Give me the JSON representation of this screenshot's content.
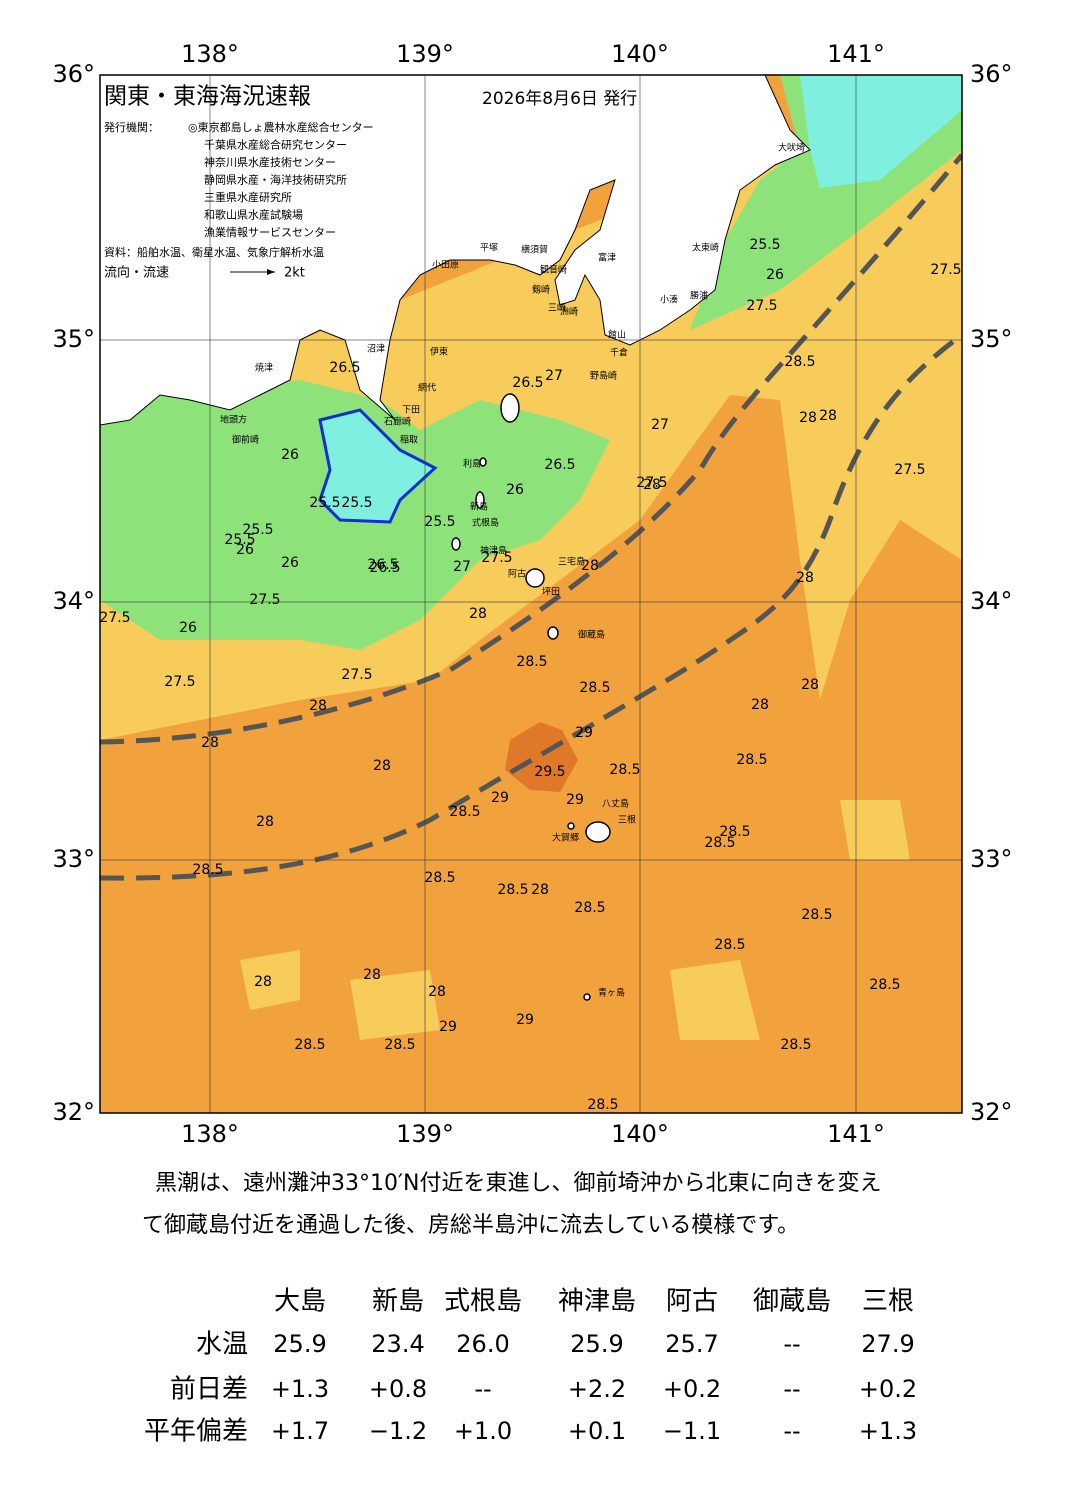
{
  "map": {
    "title": "関東・東海海況速報",
    "date": "2026年8月6日 発行",
    "issuer_label": "発行機関：",
    "issuers": [
      "◎東京都島しょ農林水産総合センター",
      "千葉県水産総合研究センター",
      "神奈川県水産技術センター",
      "静岡県水産・海洋技術研究所",
      "三重県水産研究所",
      "和歌山県水産試験場",
      "漁業情報サービスセンター"
    ],
    "sources": "資料：船舶水温、衛星水温、気象庁解析水温",
    "flow_label": "流向・流速",
    "flow_scale": "2kt",
    "lon_labels": [
      "138°",
      "139°",
      "140°",
      "141°"
    ],
    "lat_labels": [
      "36°",
      "35°",
      "34°",
      "33°",
      "32°"
    ],
    "place_names": [
      "大吠埼",
      "太東崎",
      "勝浦",
      "小湊",
      "富津",
      "平塚",
      "横須賀",
      "観音崎",
      "小田原",
      "剱崎",
      "三崎",
      "洲崎",
      "館山",
      "千倉",
      "野島崎",
      "伊東",
      "網代",
      "稲取",
      "下田",
      "石廊崎",
      "沼津",
      "焼津",
      "御前崎",
      "地頭方",
      "利島",
      "新島",
      "式根島",
      "神津島",
      "三宅島",
      "阿古",
      "坪田",
      "御蔵島",
      "八丈島",
      "三根",
      "大賀郷",
      "青ヶ島"
    ],
    "contour_labels": [
      25.5,
      26,
      27.5,
      25.5,
      26,
      26.5,
      25.5,
      26,
      25.5,
      26,
      26.5,
      25.5,
      25.5,
      26.5,
      27,
      26.5,
      26,
      26.5,
      27,
      27.5,
      28,
      28,
      27.5,
      27.5,
      26,
      27.5,
      27.5,
      28,
      28.5,
      28.5,
      29,
      29.5,
      29,
      29,
      28.5,
      28.5,
      28.5,
      28,
      28,
      28.5,
      28.5,
      28.5,
      28.5,
      28,
      28.5,
      28.5,
      28,
      28.5,
      28,
      28.5,
      28.5,
      28,
      28,
      29,
      29,
      28.5,
      28.5,
      28.5,
      28.5,
      28,
      28,
      27.5,
      28,
      27.5,
      27.5,
      27,
      28,
      28,
      28,
      28.5
    ],
    "summary": [
      "黒潮は、遠州灘沖33°10′N付近を東進し、御前埼沖から北東に向きを変え",
      "て御蔵島付近を通過した後、房総半島沖に流去している模様です。"
    ],
    "table": {
      "columns": [
        "大島",
        "新島",
        "式根島",
        "神津島",
        "阿古",
        "御蔵島",
        "三根"
      ],
      "rows": [
        {
          "label": "水温",
          "values": [
            "25.9",
            "23.4",
            "26.0",
            "25.9",
            "25.7",
            "--",
            "27.9"
          ]
        },
        {
          "label": "前日差",
          "values": [
            "+1.3",
            "+0.8",
            "--",
            "+2.2",
            "+0.2",
            "--",
            "+0.2"
          ]
        },
        {
          "label": "平年偏差",
          "values": [
            "+1.7",
            "−1.2",
            "+1.0",
            "+0.1",
            "−1.1",
            "--",
            "+1.3"
          ]
        }
      ]
    }
  }
}
